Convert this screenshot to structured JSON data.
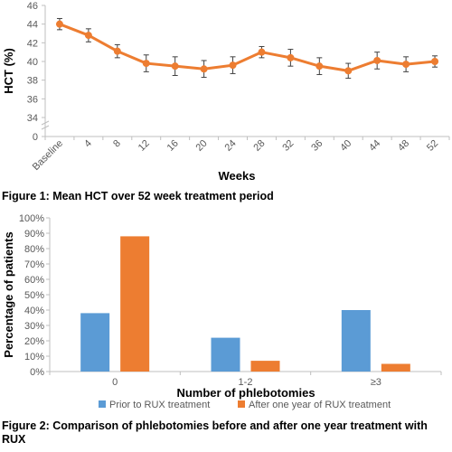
{
  "figure1": {
    "caption": "Figure 1: Mean HCT over 52 week treatment period",
    "chart_data": {
      "type": "line",
      "title": "",
      "xlabel": "Weeks",
      "ylabel": "HCT (%)",
      "categories": [
        "Baseline",
        "4",
        "8",
        "12",
        "16",
        "20",
        "24",
        "28",
        "32",
        "36",
        "40",
        "44",
        "48",
        "52"
      ],
      "series": [
        {
          "values": [
            44.0,
            42.8,
            41.1,
            39.8,
            39.5,
            39.2,
            39.6,
            41.0,
            40.4,
            39.5,
            39.0,
            40.1,
            39.7,
            40.0
          ],
          "error": [
            0.6,
            0.7,
            0.7,
            0.9,
            1.0,
            0.9,
            0.9,
            0.6,
            0.9,
            0.9,
            0.8,
            0.9,
            0.8,
            0.6
          ]
        }
      ],
      "yticks": [
        "0",
        "34",
        "36",
        "38",
        "40",
        "42",
        "44",
        "46"
      ],
      "ylim": [
        34,
        46
      ],
      "axis_break": true,
      "grid": false,
      "color": "#ED7D31"
    }
  },
  "figure2": {
    "caption": "Figure 2: Comparison of phlebotomies before and after one year treatment with RUX",
    "chart_data": {
      "type": "bar",
      "title": "",
      "xlabel": "Number of phlebotomies",
      "ylabel": "Percentage of patients",
      "categories": [
        "0",
        "1-2",
        "≥3"
      ],
      "series": [
        {
          "name": "Prior to RUX treatment",
          "values": [
            38,
            22,
            40
          ],
          "color": "#5B9BD5"
        },
        {
          "name": "After one year of RUX treatment",
          "values": [
            88,
            7,
            5
          ],
          "color": "#ED7D31"
        }
      ],
      "yticks": [
        "0%",
        "10%",
        "20%",
        "30%",
        "40%",
        "50%",
        "60%",
        "70%",
        "80%",
        "90%",
        "100%"
      ],
      "ylim": [
        0,
        100
      ],
      "grid": false,
      "legend": "bottom"
    }
  }
}
